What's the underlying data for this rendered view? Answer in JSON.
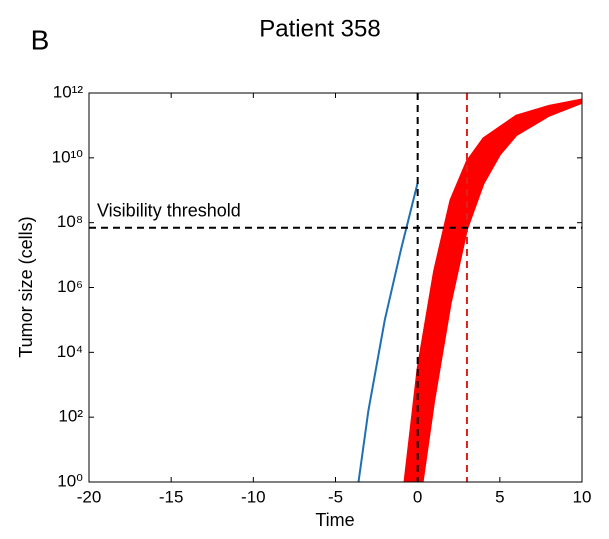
{
  "panel_label": "B",
  "chart_data": {
    "type": "line",
    "title": "Patient 358",
    "xlabel": "Time",
    "ylabel": "Tumor size (cells)",
    "xlim": [
      -20,
      10
    ],
    "xticks": [
      -20,
      -15,
      -10,
      -5,
      0,
      5,
      10
    ],
    "yscale": "log",
    "ylim": [
      1,
      1000000000000
    ],
    "yticks": [
      {
        "value": 1,
        "label": "10⁰"
      },
      {
        "value": 100,
        "label": "10²"
      },
      {
        "value": 10000,
        "label": "10⁴"
      },
      {
        "value": 1000000,
        "label": "10⁶"
      },
      {
        "value": 100000000,
        "label": "10⁸"
      },
      {
        "value": 10000000000,
        "label": "10¹⁰"
      },
      {
        "value": 1000000000000,
        "label": "10¹²"
      }
    ],
    "grid": false,
    "series": [
      {
        "color": "#1f6fb4",
        "x": [
          -3.6,
          -3,
          -2,
          -1,
          0
        ],
        "values": [
          1,
          158,
          100000,
          16000000,
          1700000000
        ]
      },
      {
        "color": "#ff0000",
        "x": [
          -0.8,
          0,
          1,
          2,
          3,
          4,
          6,
          8,
          10
        ],
        "values": [
          1,
          3162,
          3160000,
          500000000,
          7900000000,
          40000000000,
          200000000000,
          400000000000,
          630000000000
        ]
      },
      {
        "color": "#ff0000",
        "x": [
          0.3,
          1,
          2,
          3,
          4,
          5,
          6,
          8,
          10
        ],
        "values": [
          1,
          316,
          316000,
          63000000,
          1600000000,
          12600000000,
          50000000000,
          200000000000,
          500000000000
        ]
      }
    ],
    "band": {
      "color": "#ff0000",
      "upper_series": 1,
      "lower_series": 2
    },
    "hlines": [
      {
        "value": 70000000,
        "label": "Visibility threshold",
        "color": "#000000"
      }
    ],
    "vlines": [
      {
        "value": 0,
        "color": "#000000"
      },
      {
        "value": 3,
        "color": "#e0201b"
      }
    ]
  }
}
